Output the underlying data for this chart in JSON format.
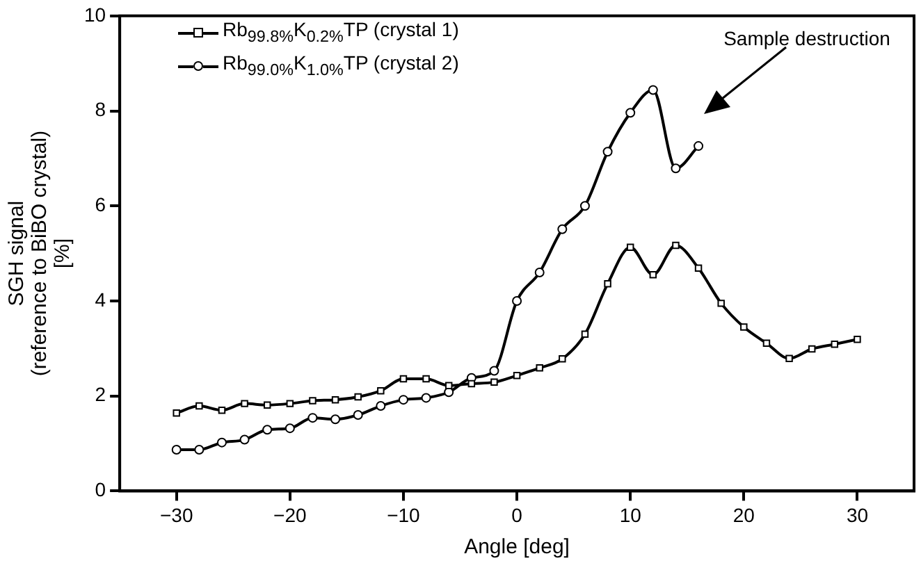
{
  "chart_data": {
    "type": "line",
    "xlabel": "Angle [deg]",
    "ylabel": "SGH signal\n(reference to BiBO crystal)\n[%]",
    "xlim": [
      -35,
      35
    ],
    "xticks": [
      -30,
      -20,
      -10,
      0,
      10,
      20,
      30
    ],
    "ylim": [
      0,
      10
    ],
    "yticks": [
      0,
      2,
      4,
      6,
      8,
      10
    ],
    "grid": false,
    "legend": "top left",
    "line_style": "solid",
    "annotations": [
      "Sample destruction"
    ],
    "series": [
      {
        "name": "Rb$_{99.8%}$K$_{0.2%}$TP (crystal 1)",
        "color": "#000000",
        "marker": "square",
        "x": [
          -30,
          -28,
          -26,
          -24,
          -22,
          -20,
          -18,
          -16,
          -14,
          -12,
          -10,
          -8,
          -6,
          -4,
          -2,
          0,
          2,
          4,
          6,
          8,
          10,
          12,
          14,
          16,
          18,
          20,
          22,
          24,
          26,
          28,
          30
        ],
        "values": [
          1.64,
          1.79,
          1.7,
          1.84,
          1.81,
          1.84,
          1.9,
          1.92,
          1.98,
          2.11,
          2.36,
          2.36,
          2.22,
          2.26,
          2.29,
          2.43,
          2.59,
          2.78,
          3.3,
          4.36,
          5.13,
          4.55,
          5.17,
          4.69,
          3.95,
          3.45,
          3.11,
          2.79,
          2.99,
          3.09,
          3.19
        ]
      },
      {
        "name": "Rb$_{99.0%}$K$_{1.0%}$TP (crystal 2)",
        "color": "#000000",
        "marker": "circle",
        "x": [
          -30,
          -28,
          -26,
          -24,
          -22,
          -20,
          -18,
          -16,
          -14,
          -12,
          -10,
          -8,
          -6,
          -4,
          -2,
          0,
          2,
          4,
          6,
          8,
          10,
          12,
          14,
          16
        ],
        "values": [
          0.87,
          0.87,
          1.02,
          1.08,
          1.29,
          1.32,
          1.54,
          1.51,
          1.6,
          1.79,
          1.92,
          1.96,
          2.08,
          2.38,
          2.53,
          4.0,
          4.6,
          5.51,
          6.0,
          7.14,
          7.96,
          8.44,
          6.79,
          7.26
        ]
      }
    ]
  }
}
